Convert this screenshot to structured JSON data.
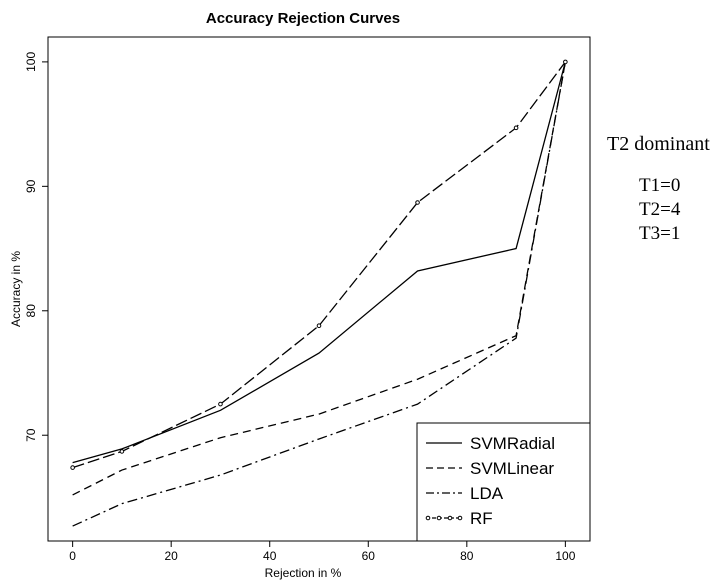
{
  "chart_data": {
    "type": "line",
    "title": "Accuracy Rejection Curves",
    "xlabel": "Rejection in %",
    "ylabel": "Accuracy in %",
    "xlim": [
      -5,
      105
    ],
    "ylim": [
      61.5,
      102
    ],
    "xticks": [
      0,
      20,
      40,
      60,
      80,
      100
    ],
    "yticks": [
      70,
      80,
      90,
      100
    ],
    "grid": false,
    "legend_position": "bottom-right",
    "series": [
      {
        "name": "SVMRadial",
        "style": "solid",
        "points": [
          [
            0,
            67.8
          ],
          [
            10,
            68.9
          ],
          [
            30,
            72.0
          ],
          [
            50,
            76.6
          ],
          [
            70,
            83.2
          ],
          [
            90,
            85.0
          ],
          [
            100,
            100.0
          ]
        ]
      },
      {
        "name": "SVMLinear",
        "style": "dashed",
        "points": [
          [
            0,
            65.2
          ],
          [
            10,
            67.2
          ],
          [
            30,
            69.8
          ],
          [
            50,
            71.7
          ],
          [
            70,
            74.5
          ],
          [
            90,
            78.0
          ],
          [
            100,
            100.0
          ]
        ]
      },
      {
        "name": "LDA",
        "style": "dashdot",
        "points": [
          [
            0,
            62.7
          ],
          [
            10,
            64.5
          ],
          [
            30,
            66.8
          ],
          [
            50,
            69.7
          ],
          [
            70,
            72.5
          ],
          [
            90,
            77.8
          ],
          [
            100,
            100.0
          ]
        ]
      },
      {
        "name": "RF",
        "style": "longdash-circles",
        "points": [
          [
            0,
            67.4
          ],
          [
            10,
            68.7
          ],
          [
            30,
            72.5
          ],
          [
            50,
            78.8
          ],
          [
            70,
            88.7
          ],
          [
            90,
            94.7
          ],
          [
            100,
            100.0
          ]
        ]
      }
    ]
  },
  "annotation": {
    "title": "T2 dominant",
    "lines": [
      "T1=0",
      "T2=4",
      "T3=1"
    ]
  }
}
